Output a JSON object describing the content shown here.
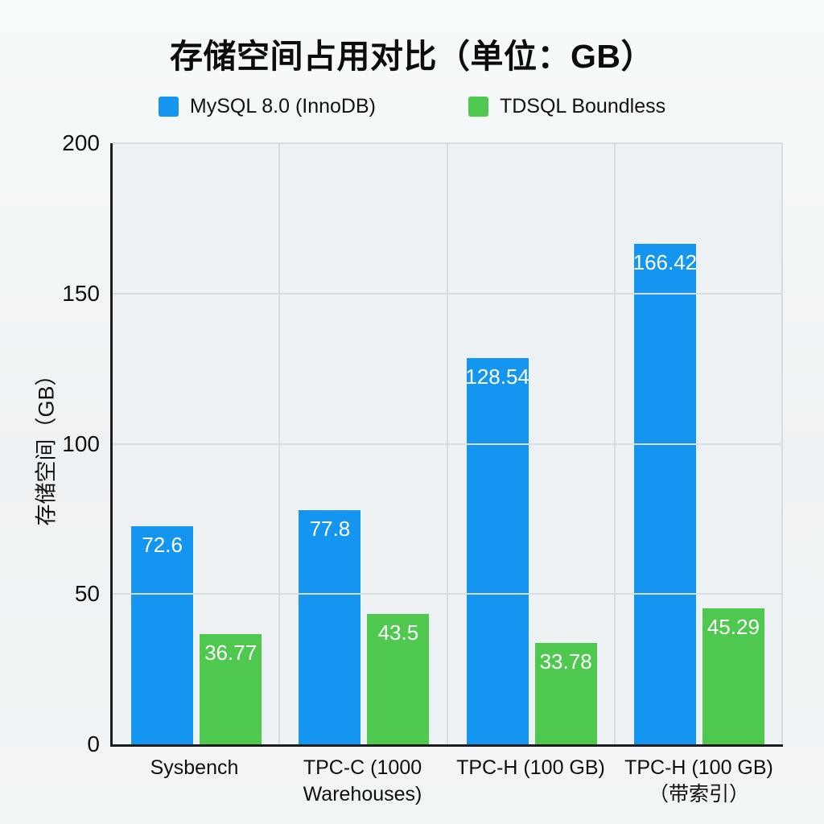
{
  "chart_data": {
    "type": "bar",
    "title": "存储空间占用对比（单位：GB）",
    "categories": [
      "Sysbench",
      "TPC-C (1000\nWarehouses)",
      "TPC-H (100 GB)",
      "TPC-H (100 GB)\n（带索引）"
    ],
    "series": [
      {
        "name": "MySQL 8.0 (InnoDB)",
        "color": "#1496f0",
        "values": [
          72.6,
          77.8,
          128.54,
          166.42
        ]
      },
      {
        "name": "TDSQL Boundless",
        "color": "#4ec84e",
        "values": [
          36.77,
          43.5,
          33.78,
          45.29
        ]
      }
    ],
    "xlabel": "",
    "ylabel": "存储空间（GB）",
    "ylim": [
      0,
      200
    ],
    "yticks": [
      0,
      50,
      100,
      150,
      200
    ],
    "grid": true,
    "legend_position": "top-center",
    "colors": {
      "grid": "#d8dcde",
      "axis": "#1a1c1f",
      "plot_background": "#eef1f3",
      "bar_label_text": "#ffffff"
    }
  }
}
